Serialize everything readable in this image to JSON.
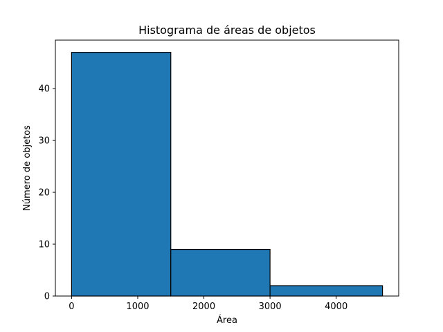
{
  "chart_data": {
    "type": "bar",
    "title": "Histograma de áreas de objetos",
    "xlabel": "Área",
    "ylabel": "Número de objetos",
    "bins": [
      {
        "start": 0,
        "end": 1500,
        "count": 47
      },
      {
        "start": 1500,
        "end": 3000,
        "count": 9
      },
      {
        "start": 3000,
        "end": 4700,
        "count": 2
      }
    ],
    "xlim": [
      -245,
      4945
    ],
    "ylim": [
      0,
      49.35
    ],
    "xticks": [
      0,
      1000,
      2000,
      3000,
      4000
    ],
    "yticks": [
      0,
      10,
      20,
      30,
      40
    ],
    "grid": false,
    "bar_color": "#1f77b4",
    "edge_color": "#000000"
  }
}
